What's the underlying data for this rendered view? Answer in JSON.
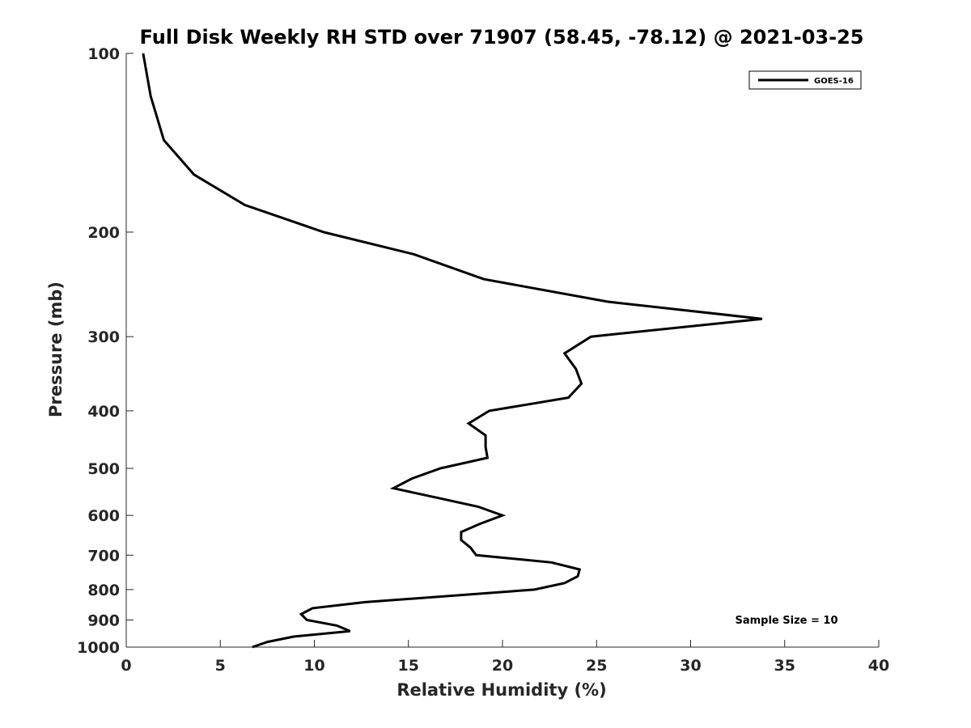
{
  "chart_data": {
    "type": "line",
    "title": "Full Disk Weekly RH STD over 71907 (58.45, -78.12) @ 2021-03-25",
    "xlabel": "Relative Humidity (%)",
    "ylabel": "Pressure (mb)",
    "xlim": [
      0,
      40
    ],
    "ylim": [
      100,
      1000
    ],
    "y_scale": "log",
    "y_direction": "reversed",
    "grid": false,
    "x_ticks": [
      0,
      5,
      10,
      15,
      20,
      25,
      30,
      35,
      40
    ],
    "x_tick_labels": [
      "0",
      "5",
      "10",
      "15",
      "20",
      "25",
      "30",
      "35",
      "40"
    ],
    "y_ticks": [
      100,
      200,
      300,
      400,
      500,
      600,
      700,
      800,
      900,
      1000
    ],
    "y_tick_labels": [
      "100",
      "200",
      "300",
      "400",
      "500",
      "600",
      "700",
      "800",
      "900",
      "1000"
    ],
    "legend": {
      "placement": "top-right",
      "entries": [
        "GOES-16"
      ]
    },
    "annotations": [
      {
        "text": "Sample Size = 10",
        "placement": "bottom-right"
      }
    ],
    "series": [
      {
        "name": "GOES-16",
        "color": "#000000",
        "points": [
          {
            "x": 0.9,
            "y": 100
          },
          {
            "x": 1.3,
            "y": 118
          },
          {
            "x": 2.0,
            "y": 140
          },
          {
            "x": 3.6,
            "y": 160
          },
          {
            "x": 6.3,
            "y": 180
          },
          {
            "x": 10.5,
            "y": 200
          },
          {
            "x": 15.3,
            "y": 218
          },
          {
            "x": 19.0,
            "y": 240
          },
          {
            "x": 25.6,
            "y": 262
          },
          {
            "x": 33.8,
            "y": 280
          },
          {
            "x": 24.7,
            "y": 300
          },
          {
            "x": 23.3,
            "y": 320
          },
          {
            "x": 23.9,
            "y": 340
          },
          {
            "x": 24.2,
            "y": 360
          },
          {
            "x": 23.5,
            "y": 380
          },
          {
            "x": 19.3,
            "y": 400
          },
          {
            "x": 18.2,
            "y": 420
          },
          {
            "x": 19.1,
            "y": 440
          },
          {
            "x": 19.1,
            "y": 460
          },
          {
            "x": 19.2,
            "y": 480
          },
          {
            "x": 16.7,
            "y": 500
          },
          {
            "x": 15.2,
            "y": 520
          },
          {
            "x": 14.2,
            "y": 540
          },
          {
            "x": 16.5,
            "y": 560
          },
          {
            "x": 18.7,
            "y": 580
          },
          {
            "x": 20.0,
            "y": 600
          },
          {
            "x": 18.8,
            "y": 620
          },
          {
            "x": 17.8,
            "y": 640
          },
          {
            "x": 17.8,
            "y": 660
          },
          {
            "x": 18.3,
            "y": 680
          },
          {
            "x": 18.6,
            "y": 700
          },
          {
            "x": 22.6,
            "y": 720
          },
          {
            "x": 24.1,
            "y": 740
          },
          {
            "x": 24.0,
            "y": 760
          },
          {
            "x": 23.3,
            "y": 780
          },
          {
            "x": 21.7,
            "y": 800
          },
          {
            "x": 12.7,
            "y": 840
          },
          {
            "x": 9.9,
            "y": 860
          },
          {
            "x": 9.3,
            "y": 880
          },
          {
            "x": 9.6,
            "y": 900
          },
          {
            "x": 11.2,
            "y": 920
          },
          {
            "x": 11.9,
            "y": 940
          },
          {
            "x": 8.9,
            "y": 960
          },
          {
            "x": 7.5,
            "y": 980
          },
          {
            "x": 6.7,
            "y": 1000
          }
        ]
      }
    ]
  }
}
